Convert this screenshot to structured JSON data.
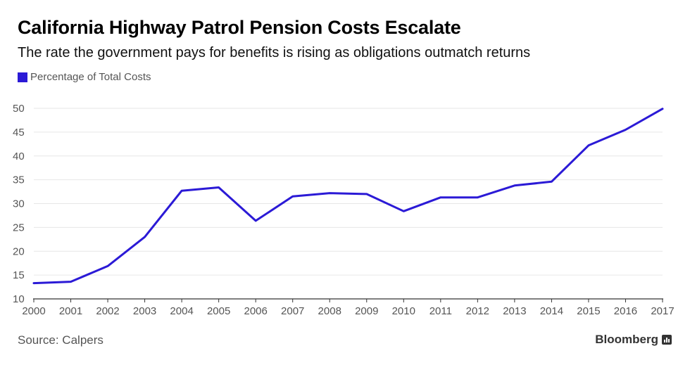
{
  "header": {
    "title": "California Highway Patrol Pension Costs Escalate",
    "subtitle": "The rate the government pays for benefits is rising as obligations outmatch returns"
  },
  "footer": {
    "source": "Source: Calpers",
    "brand": "Bloomberg",
    "brand_icon": "bar-chart-icon"
  },
  "colors": {
    "series": "#2b1ad6",
    "grid": "#e6e6e6",
    "axis": "#333333",
    "tick_text": "#555555"
  },
  "chart_data": {
    "type": "line",
    "xlabel": "",
    "ylabel": "",
    "ylim": [
      10,
      50
    ],
    "yticks": [
      10,
      15,
      20,
      25,
      30,
      35,
      40,
      45,
      50
    ],
    "grid": true,
    "legend_placement": "top-left",
    "x": [
      "2000",
      "2001",
      "2002",
      "2003",
      "2004",
      "2005",
      "2006",
      "2007",
      "2008",
      "2009",
      "2010",
      "2011",
      "2012",
      "2013",
      "2014",
      "2015",
      "2016",
      "2017"
    ],
    "series": [
      {
        "name": "Percentage of Total Costs",
        "values": [
          13.3,
          13.6,
          16.9,
          23.0,
          32.7,
          33.4,
          26.4,
          31.5,
          32.2,
          32.0,
          28.4,
          31.3,
          31.3,
          33.8,
          34.6,
          42.2,
          45.5,
          49.9
        ]
      }
    ]
  }
}
